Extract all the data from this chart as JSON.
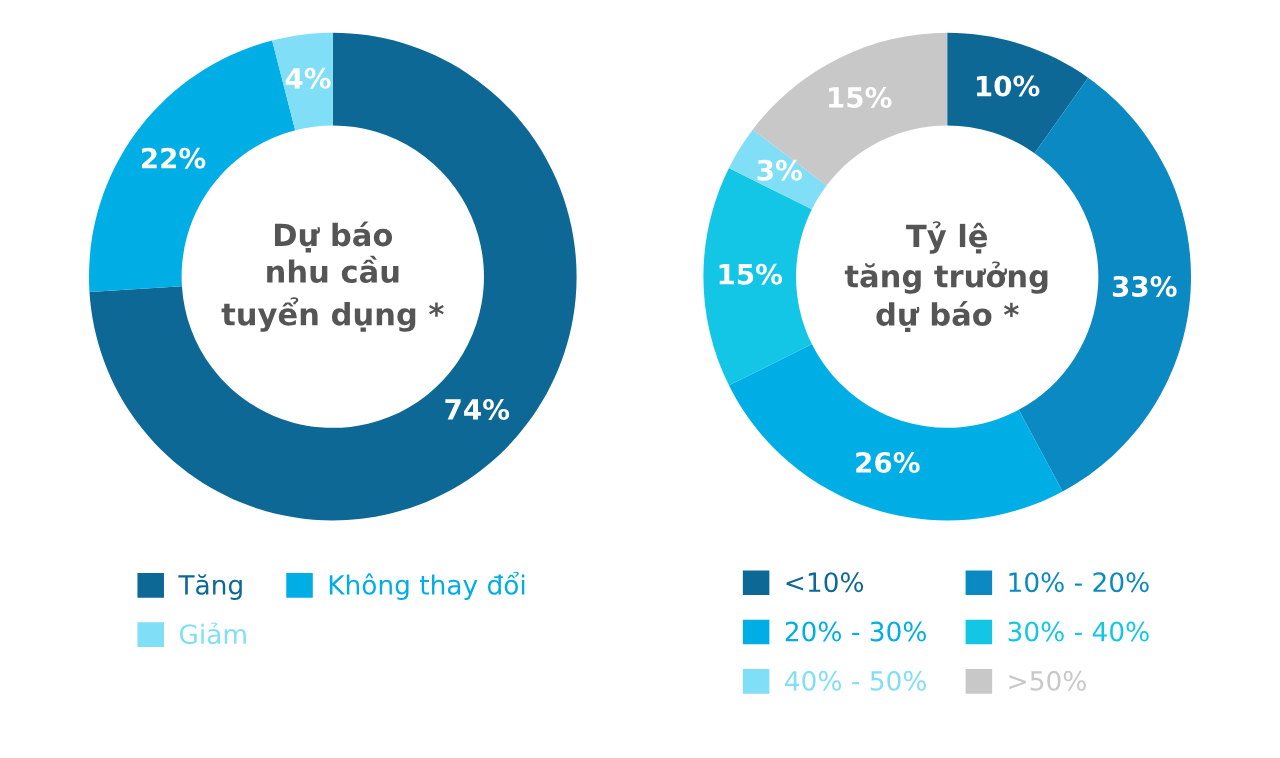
{
  "chart_data": [
    {
      "type": "donut",
      "title": "Dự báo\nnhu cầu\ntuyển dụng *",
      "categories": [
        "Tăng",
        "Không thay đổi",
        "Giảm"
      ],
      "values": [
        74,
        22,
        4
      ],
      "colors": [
        "#0d6896",
        "#00aee6",
        "#80def6"
      ],
      "value_labels": [
        "74%",
        "22%",
        "4%"
      ],
      "legend": "bottom"
    },
    {
      "type": "donut",
      "title": "Tỷ lệ\ntăng trưởng\ndự báo *",
      "categories": [
        "<10%",
        "10% - 20%",
        "20% - 30%",
        "30% - 40%",
        "40% - 50%",
        ">50%"
      ],
      "values": [
        10,
        33,
        26,
        15,
        3,
        15
      ],
      "colors": [
        "#0d6896",
        "#0a89c2",
        "#00aee6",
        "#14c6e6",
        "#80def6",
        "#c8c8c8"
      ],
      "value_labels": [
        "10%",
        "33%",
        "26%",
        "15%",
        "3%",
        "15%"
      ],
      "legend": "bottom"
    }
  ]
}
